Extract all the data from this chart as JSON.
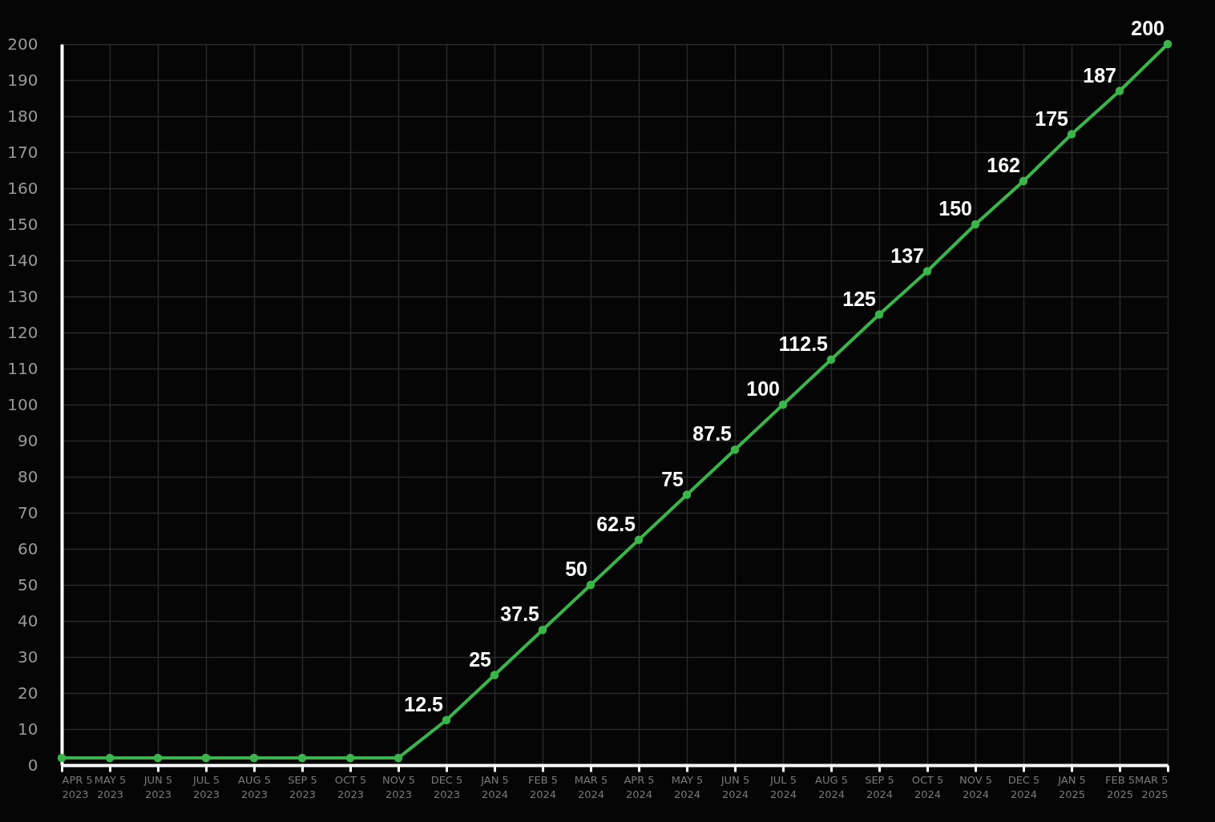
{
  "chart_data": {
    "type": "line",
    "categories": [
      "APR 5 2023",
      "MAY 5 2023",
      "JUN 5 2023",
      "JUL 5 2023",
      "AUG 5 2023",
      "SEP 5 2023",
      "OCT 5 2023",
      "NOV 5 2023",
      "DEC 5 2023",
      "JAN 5 2024",
      "FEB 5 2024",
      "MAR 5 2024",
      "APR 5 2024",
      "MAY 5 2024",
      "JUN 5 2024",
      "JUL 5 2024",
      "AUG 5 2024",
      "SEP 5 2024",
      "OCT 5 2024",
      "NOV 5 2024",
      "DEC 5 2024",
      "JAN 5 2025",
      "FEB 5 2025",
      "MAR 5 2025"
    ],
    "values": [
      2,
      2,
      2,
      2,
      2,
      2,
      2,
      2,
      12.5,
      25,
      37.5,
      50,
      62.5,
      75,
      87.5,
      100,
      112.5,
      125,
      137,
      150,
      162,
      175,
      187,
      200
    ],
    "value_labels": [
      null,
      null,
      null,
      null,
      null,
      null,
      null,
      null,
      "12.5",
      "25",
      "37.5",
      "50",
      "62.5",
      "75",
      "87.5",
      "100",
      "112.5",
      "125",
      "137",
      "150",
      "162",
      "175",
      "187",
      "200"
    ],
    "color": "#39b54a",
    "ylim": [
      0,
      200
    ],
    "yticks": [
      0,
      10,
      20,
      30,
      40,
      50,
      60,
      70,
      80,
      90,
      100,
      110,
      120,
      130,
      140,
      150,
      160,
      170,
      180,
      190,
      200
    ],
    "grid": true,
    "marker": "circle"
  }
}
